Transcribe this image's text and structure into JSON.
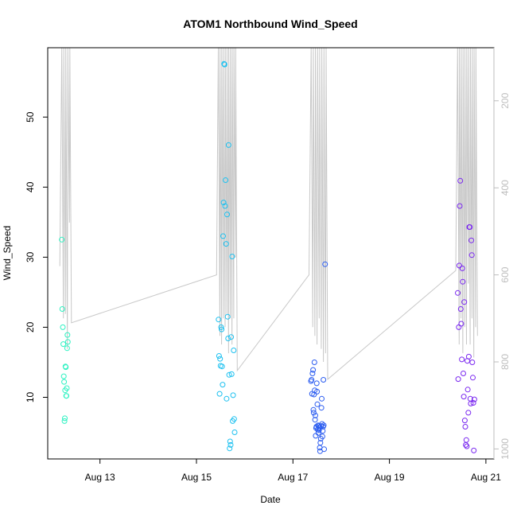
{
  "chart_data": {
    "type": "scatter",
    "title": "ATOM1 Northbound Wind_Speed",
    "xlabel": "Date",
    "ylabel": "Wind_Speed",
    "x_ticks": [
      "Aug 13",
      "Aug 15",
      "Aug 17",
      "Aug 19",
      "Aug 21"
    ],
    "y_ticks": [
      10,
      20,
      30,
      40,
      50
    ],
    "xlim": [
      "2023-08-11T22:00",
      "2023-08-21T04:00"
    ],
    "ylim": [
      1.2,
      59.9
    ],
    "right_axis": {
      "ticks": [
        200,
        400,
        600,
        800,
        1000
      ],
      "range": [
        1023,
        78
      ],
      "reversed": true,
      "color": "#bdbdbd"
    },
    "grid": false,
    "legend": "none",
    "point_colors": {
      "Aug 12": "#2ef2c2",
      "Aug 15": "#1ec1f0",
      "Aug 17": "#2b5cf0",
      "Aug 20": "#7a28f0"
    },
    "pressure_line_color": "#c8c8c8",
    "series": [
      {
        "date": "2023-08-12",
        "color": "#2ef2c2",
        "x": [
          "2023-08-12T05:00",
          "2023-08-12T05:15",
          "2023-08-12T05:30",
          "2023-08-12T05:45",
          "2023-08-12T06:00",
          "2023-08-12T06:10",
          "2023-08-12T06:20",
          "2023-08-12T06:30",
          "2023-08-12T06:40",
          "2023-08-12T06:50",
          "2023-08-12T07:00",
          "2023-08-12T07:10",
          "2023-08-12T07:20",
          "2023-08-12T07:30",
          "2023-08-12T07:40",
          "2023-08-12T07:50",
          "2023-08-12T08:00"
        ],
        "y": [
          32.5,
          22.6,
          20.0,
          17.6,
          13.0,
          12.2,
          6.6,
          7.0,
          11.0,
          14.4,
          14.3,
          10.2,
          10.2,
          11.3,
          17.0,
          18.9,
          17.9
        ]
      },
      {
        "date": "2023-08-15",
        "color": "#1ec1f0",
        "x": [
          "2023-08-15T11:00",
          "2023-08-15T11:15",
          "2023-08-15T11:30",
          "2023-08-15T11:45",
          "2023-08-15T12:00",
          "2023-08-15T12:15",
          "2023-08-15T12:30",
          "2023-08-15T12:45",
          "2023-08-15T13:00",
          "2023-08-15T13:15",
          "2023-08-15T13:30",
          "2023-08-15T13:45",
          "2023-08-15T14:00",
          "2023-08-15T14:15",
          "2023-08-15T14:30",
          "2023-08-15T14:45",
          "2023-08-15T15:00",
          "2023-08-15T15:15",
          "2023-08-15T15:30",
          "2023-08-15T15:45",
          "2023-08-15T16:00",
          "2023-08-15T16:15",
          "2023-08-15T16:30",
          "2023-08-15T16:45",
          "2023-08-15T17:00",
          "2023-08-15T17:15",
          "2023-08-15T17:30",
          "2023-08-15T17:45",
          "2023-08-15T18:00",
          "2023-08-15T18:15",
          "2023-08-15T18:30",
          "2023-08-15T18:45",
          "2023-08-15T19:00"
        ],
        "y": [
          21.1,
          15.9,
          10.5,
          15.5,
          14.5,
          20.0,
          19.7,
          14.4,
          11.8,
          33.0,
          37.8,
          57.6,
          57.5,
          37.3,
          41.0,
          31.9,
          9.8,
          36.1,
          21.5,
          18.4,
          46.0,
          13.2,
          2.7,
          3.7,
          3.2,
          18.6,
          13.3,
          30.1,
          6.6,
          10.3,
          16.7,
          6.9,
          5.0
        ]
      },
      {
        "date": "2023-08-17",
        "color": "#2b5cf0",
        "x": [
          "2023-08-17T09:00",
          "2023-08-17T09:15",
          "2023-08-17T09:30",
          "2023-08-17T09:45",
          "2023-08-17T10:00",
          "2023-08-17T10:10",
          "2023-08-17T10:20",
          "2023-08-17T10:30",
          "2023-08-17T10:40",
          "2023-08-17T10:50",
          "2023-08-17T11:00",
          "2023-08-17T11:10",
          "2023-08-17T11:20",
          "2023-08-17T11:30",
          "2023-08-17T11:40",
          "2023-08-17T11:50",
          "2023-08-17T12:00",
          "2023-08-17T12:10",
          "2023-08-17T12:20",
          "2023-08-17T12:30",
          "2023-08-17T12:40",
          "2023-08-17T12:50",
          "2023-08-17T13:00",
          "2023-08-17T13:10",
          "2023-08-17T13:20",
          "2023-08-17T13:30",
          "2023-08-17T13:40",
          "2023-08-17T13:50",
          "2023-08-17T14:00",
          "2023-08-17T14:10",
          "2023-08-17T14:20",
          "2023-08-17T14:30",
          "2023-08-17T14:40",
          "2023-08-17T14:50",
          "2023-08-17T15:00",
          "2023-08-17T15:10",
          "2023-08-17T15:20",
          "2023-08-17T15:30",
          "2023-08-17T16:00"
        ],
        "y": [
          12.3,
          12.5,
          10.5,
          13.4,
          13.9,
          8.2,
          7.8,
          10.4,
          15.0,
          11.0,
          6.8,
          7.4,
          4.5,
          5.6,
          5.8,
          12.0,
          10.8,
          9.0,
          5.4,
          6.0,
          4.9,
          5.9,
          5.3,
          5.7,
          2.8,
          2.3,
          3.5,
          4.1,
          5.9,
          8.5,
          9.8,
          6.2,
          4.4,
          5.2,
          5.8,
          12.5,
          6.0,
          2.6,
          29.0
        ]
      },
      {
        "date": "2023-08-20",
        "color": "#7a28f0",
        "x": [
          "2023-08-20T10:00",
          "2023-08-20T10:15",
          "2023-08-20T10:30",
          "2023-08-20T10:45",
          "2023-08-20T11:00",
          "2023-08-20T11:15",
          "2023-08-20T11:30",
          "2023-08-20T11:45",
          "2023-08-20T12:00",
          "2023-08-20T12:15",
          "2023-08-20T12:30",
          "2023-08-20T12:45",
          "2023-08-20T13:00",
          "2023-08-20T13:15",
          "2023-08-20T13:30",
          "2023-08-20T13:45",
          "2023-08-20T14:00",
          "2023-08-20T14:15",
          "2023-08-20T14:30",
          "2023-08-20T14:45",
          "2023-08-20T15:00",
          "2023-08-20T15:15",
          "2023-08-20T15:30",
          "2023-08-20T15:45",
          "2023-08-20T16:00",
          "2023-08-20T16:15",
          "2023-08-20T16:30",
          "2023-08-20T16:45",
          "2023-08-20T17:00",
          "2023-08-20T17:15",
          "2023-08-20T17:30",
          "2023-08-20T17:45",
          "2023-08-20T18:00",
          "2023-08-20T18:15"
        ],
        "y": [
          24.9,
          12.6,
          20.0,
          28.8,
          37.3,
          40.9,
          22.6,
          20.5,
          15.4,
          28.4,
          26.5,
          13.4,
          10.1,
          23.6,
          6.7,
          5.8,
          3.2,
          3.9,
          3.0,
          15.2,
          11.1,
          7.8,
          15.8,
          34.3,
          34.3,
          9.8,
          9.1,
          32.4,
          30.3,
          15.0,
          12.8,
          9.2,
          2.4,
          9.7
        ]
      }
    ]
  }
}
